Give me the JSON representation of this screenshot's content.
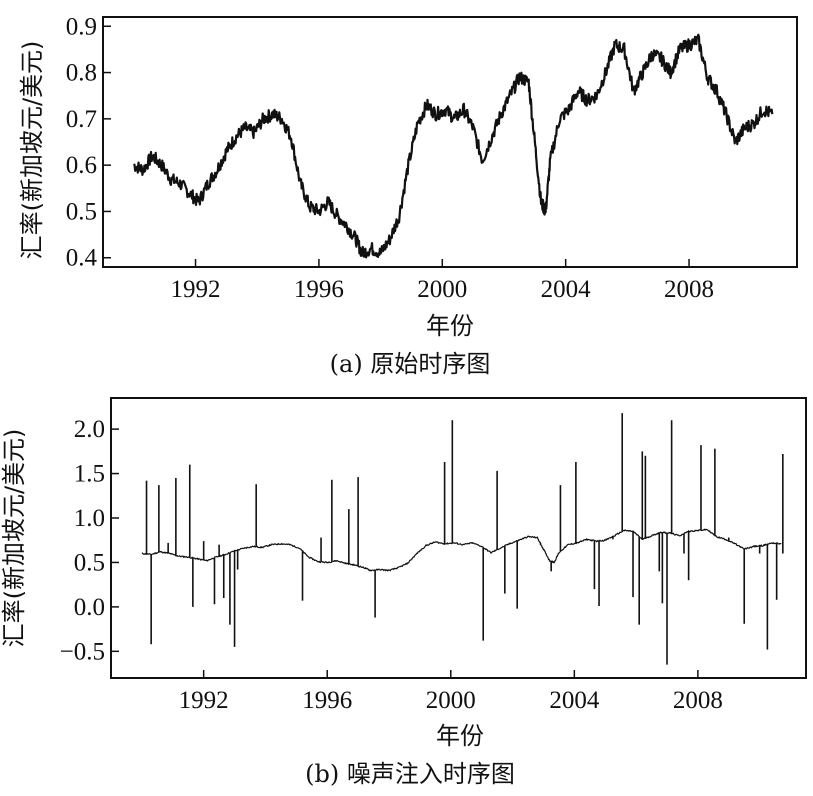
{
  "chart_data": [
    {
      "type": "line",
      "caption": "(a) 原始时序图",
      "xlabel": "年份",
      "ylabel": "汇率(新加坡元/美元)",
      "xlim": [
        1989.0,
        2011.5
      ],
      "ylim": [
        0.38,
        0.92
      ],
      "xticks": [
        1992,
        1996,
        2000,
        2004,
        2008
      ],
      "xtick_labels": [
        "1992",
        "1996",
        "2000",
        "2004",
        "2008"
      ],
      "yticks": [
        0.4,
        0.5,
        0.6,
        0.7,
        0.8,
        0.9
      ],
      "ytick_labels": [
        "0.4",
        "0.5",
        "0.6",
        "0.7",
        "0.8",
        "0.9"
      ],
      "grid": false,
      "series": [
        {
          "x": [
            1990.0,
            1990.3,
            1990.6,
            1990.9,
            1991.2,
            1991.5,
            1991.8,
            1992.1,
            1992.4,
            1992.7,
            1993.0,
            1993.3,
            1993.6,
            1993.9,
            1994.2,
            1994.5,
            1994.8,
            1995.1,
            1995.4,
            1995.7,
            1996.0,
            1996.3,
            1996.6,
            1996.9,
            1997.2,
            1997.4,
            1997.7,
            1998.0,
            1998.3,
            1998.6,
            1998.9,
            1999.2,
            1999.5,
            1999.8,
            2000.1,
            2000.4,
            2000.7,
            2001.0,
            2001.3,
            2001.6,
            2001.9,
            2002.2,
            2002.5,
            2002.8,
            2003.0,
            2003.2,
            2003.35,
            2003.5,
            2003.8,
            2004.1,
            2004.4,
            2004.7,
            2005.0,
            2005.3,
            2005.6,
            2005.9,
            2006.2,
            2006.5,
            2006.8,
            2007.1,
            2007.4,
            2007.7,
            2008.0,
            2008.3,
            2008.6,
            2008.9,
            2009.2,
            2009.5,
            2009.8,
            2010.1,
            2010.4,
            2010.7
          ],
          "values": [
            0.6,
            0.59,
            0.62,
            0.6,
            0.57,
            0.56,
            0.54,
            0.52,
            0.56,
            0.59,
            0.63,
            0.66,
            0.68,
            0.67,
            0.7,
            0.71,
            0.7,
            0.66,
            0.56,
            0.51,
            0.5,
            0.52,
            0.49,
            0.47,
            0.44,
            0.41,
            0.42,
            0.41,
            0.44,
            0.49,
            0.6,
            0.69,
            0.73,
            0.71,
            0.72,
            0.7,
            0.72,
            0.68,
            0.61,
            0.66,
            0.71,
            0.75,
            0.79,
            0.78,
            0.65,
            0.52,
            0.5,
            0.61,
            0.7,
            0.72,
            0.76,
            0.74,
            0.75,
            0.8,
            0.86,
            0.85,
            0.76,
            0.8,
            0.84,
            0.83,
            0.8,
            0.85,
            0.86,
            0.87,
            0.79,
            0.76,
            0.71,
            0.65,
            0.68,
            0.69,
            0.72,
            0.71
          ]
        }
      ]
    },
    {
      "type": "line",
      "caption": "(b) 噪声注入时序图",
      "xlabel": "年份",
      "ylabel": "汇率(新加坡元/美元)",
      "xlim": [
        1989.0,
        2011.5
      ],
      "ylim": [
        -0.8,
        2.35
      ],
      "xticks": [
        1992,
        1996,
        2000,
        2004,
        2008
      ],
      "xtick_labels": [
        "1992",
        "1996",
        "2000",
        "2004",
        "2008"
      ],
      "yticks": [
        -0.5,
        0.0,
        0.5,
        1.0,
        1.5,
        2.0
      ],
      "ytick_labels": [
        "−0.5",
        "0.0",
        "0.5",
        "1.0",
        "1.5",
        "2.0"
      ],
      "grid": false,
      "series": [
        {
          "x": [
            1990.0,
            1990.3,
            1990.6,
            1990.9,
            1991.2,
            1991.5,
            1991.8,
            1992.1,
            1992.4,
            1992.7,
            1993.0,
            1993.3,
            1993.6,
            1993.9,
            1994.2,
            1994.5,
            1994.8,
            1995.1,
            1995.4,
            1995.7,
            1996.0,
            1996.3,
            1996.6,
            1996.9,
            1997.2,
            1997.4,
            1997.7,
            1998.0,
            1998.3,
            1998.6,
            1998.9,
            1999.2,
            1999.5,
            1999.8,
            2000.1,
            2000.4,
            2000.7,
            2001.0,
            2001.3,
            2001.6,
            2001.9,
            2002.2,
            2002.5,
            2002.8,
            2003.0,
            2003.2,
            2003.35,
            2003.5,
            2003.8,
            2004.1,
            2004.4,
            2004.7,
            2005.0,
            2005.3,
            2005.6,
            2005.9,
            2006.2,
            2006.5,
            2006.8,
            2007.1,
            2007.4,
            2007.7,
            2008.0,
            2008.3,
            2008.6,
            2008.9,
            2009.2,
            2009.5,
            2009.8,
            2010.1,
            2010.4,
            2010.7
          ],
          "values": [
            0.6,
            0.59,
            0.62,
            0.6,
            0.57,
            0.56,
            0.54,
            0.52,
            0.56,
            0.59,
            0.63,
            0.66,
            0.68,
            0.67,
            0.7,
            0.71,
            0.7,
            0.66,
            0.56,
            0.51,
            0.5,
            0.52,
            0.49,
            0.47,
            0.44,
            0.41,
            0.42,
            0.41,
            0.44,
            0.49,
            0.6,
            0.69,
            0.73,
            0.71,
            0.72,
            0.7,
            0.72,
            0.68,
            0.61,
            0.66,
            0.71,
            0.75,
            0.79,
            0.78,
            0.65,
            0.52,
            0.5,
            0.61,
            0.7,
            0.72,
            0.76,
            0.74,
            0.75,
            0.8,
            0.86,
            0.85,
            0.76,
            0.8,
            0.84,
            0.83,
            0.8,
            0.85,
            0.86,
            0.87,
            0.79,
            0.76,
            0.71,
            0.65,
            0.68,
            0.69,
            0.72,
            0.71
          ]
        }
      ],
      "noise_spikes": [
        {
          "x": 1990.15,
          "y": 1.42
        },
        {
          "x": 1990.3,
          "y": -0.42
        },
        {
          "x": 1990.55,
          "y": 1.37
        },
        {
          "x": 1990.85,
          "y": 0.72
        },
        {
          "x": 1991.1,
          "y": 1.45
        },
        {
          "x": 1991.55,
          "y": 1.6
        },
        {
          "x": 1991.65,
          "y": 0.0
        },
        {
          "x": 1992.0,
          "y": 0.74
        },
        {
          "x": 1992.35,
          "y": 0.03
        },
        {
          "x": 1992.5,
          "y": 0.7
        },
        {
          "x": 1992.65,
          "y": 0.1
        },
        {
          "x": 1992.85,
          "y": -0.2
        },
        {
          "x": 1993.0,
          "y": -0.45
        },
        {
          "x": 1993.1,
          "y": 0.42
        },
        {
          "x": 1993.7,
          "y": 1.38
        },
        {
          "x": 1995.2,
          "y": 0.07
        },
        {
          "x": 1995.8,
          "y": 0.78
        },
        {
          "x": 1996.15,
          "y": 1.43
        },
        {
          "x": 1996.7,
          "y": 1.1
        },
        {
          "x": 1997.0,
          "y": 1.46
        },
        {
          "x": 1997.55,
          "y": -0.12
        },
        {
          "x": 1999.8,
          "y": 1.63
        },
        {
          "x": 2000.05,
          "y": 2.1
        },
        {
          "x": 2001.05,
          "y": -0.38
        },
        {
          "x": 2001.5,
          "y": 1.53
        },
        {
          "x": 2001.75,
          "y": 0.15
        },
        {
          "x": 2002.15,
          "y": -0.02
        },
        {
          "x": 2002.9,
          "y": 0.7
        },
        {
          "x": 2003.25,
          "y": 0.4
        },
        {
          "x": 2003.55,
          "y": 1.37
        },
        {
          "x": 2004.05,
          "y": 1.63
        },
        {
          "x": 2004.65,
          "y": 0.2
        },
        {
          "x": 2004.8,
          "y": 0.01
        },
        {
          "x": 2005.25,
          "y": 0.76
        },
        {
          "x": 2005.55,
          "y": 2.18
        },
        {
          "x": 2005.9,
          "y": 0.11
        },
        {
          "x": 2006.1,
          "y": -0.2
        },
        {
          "x": 2006.2,
          "y": 1.75
        },
        {
          "x": 2006.3,
          "y": 1.7
        },
        {
          "x": 2006.75,
          "y": 0.4
        },
        {
          "x": 2006.85,
          "y": 0.04
        },
        {
          "x": 2007.0,
          "y": -0.65
        },
        {
          "x": 2007.15,
          "y": 2.1
        },
        {
          "x": 2007.55,
          "y": 0.6
        },
        {
          "x": 2007.7,
          "y": 0.3
        },
        {
          "x": 2007.95,
          "y": 0.86
        },
        {
          "x": 2008.1,
          "y": 1.82
        },
        {
          "x": 2008.55,
          "y": 1.78
        },
        {
          "x": 2009.0,
          "y": 0.78
        },
        {
          "x": 2009.5,
          "y": -0.19
        },
        {
          "x": 2010.0,
          "y": 0.6
        },
        {
          "x": 2010.25,
          "y": -0.48
        },
        {
          "x": 2010.55,
          "y": 0.08
        },
        {
          "x": 2010.75,
          "y": 1.72
        }
      ]
    }
  ]
}
